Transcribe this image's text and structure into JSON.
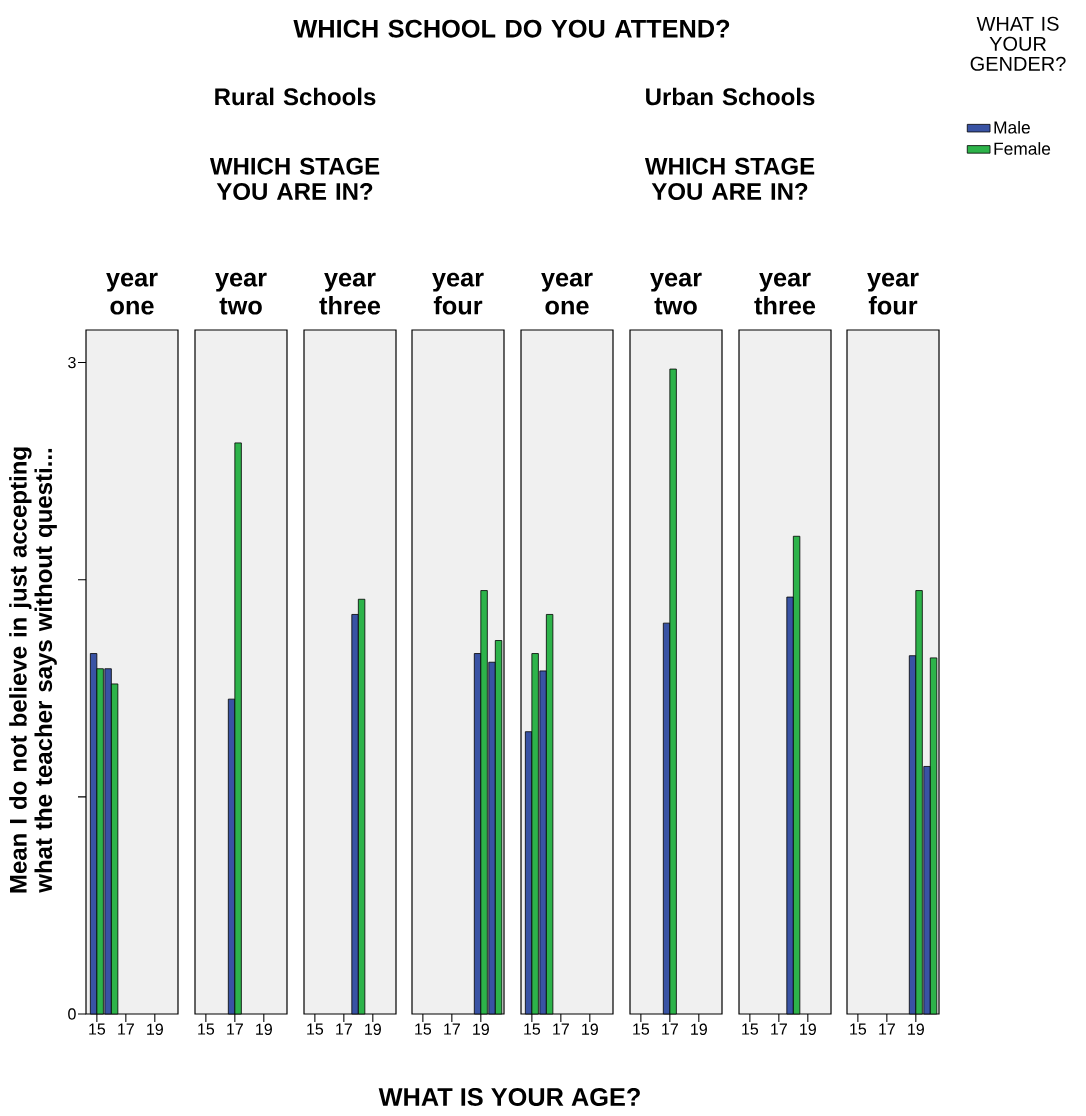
{
  "chart_data": [
    {
      "type": "bar",
      "title": "year one",
      "ylabel": "Mean I do not believe in just accepting what the teacher says without questi...",
      "annotations": [
        "WHICH SCHOOL DO YOU ATTEND?",
        "Rural Schools",
        "WHICH STAGE YOU ARE IN?"
      ],
      "xlim": [
        14.25,
        20.6
      ],
      "xticks": [
        15,
        17,
        19
      ],
      "ylim": [
        0,
        3.15
      ],
      "yticks": [
        0,
        {
          "value": 1,
          "label": null
        },
        {
          "value": 2,
          "label": null
        },
        3
      ],
      "series": [
        {
          "color": "#3953a4",
          "x": [
            15,
            16
          ],
          "values": [
            1.66,
            1.59
          ]
        },
        {
          "color": "#2db34a",
          "x": [
            15,
            16
          ],
          "values": [
            1.59,
            1.52
          ]
        }
      ]
    },
    {
      "type": "bar",
      "title": "year two",
      "xlim": [
        14.25,
        20.6
      ],
      "xticks": [
        15,
        17,
        19
      ],
      "ylim": [
        0,
        3.15
      ],
      "tick_labels": "x",
      "series": [
        {
          "color": "#3953a4",
          "x": [
            17
          ],
          "values": [
            1.45
          ]
        },
        {
          "color": "#2db34a",
          "x": [
            17
          ],
          "values": [
            2.63
          ]
        }
      ]
    },
    {
      "type": "bar",
      "title": "year three",
      "xlim": [
        14.25,
        20.6
      ],
      "xticks": [
        15,
        17,
        19
      ],
      "ylim": [
        0,
        3.15
      ],
      "tick_labels": "x",
      "series": [
        {
          "color": "#3953a4",
          "x": [
            18
          ],
          "values": [
            1.84
          ]
        },
        {
          "color": "#2db34a",
          "x": [
            18
          ],
          "values": [
            1.91
          ]
        }
      ]
    },
    {
      "type": "bar",
      "title": "year four",
      "xlabel": "WHAT IS YOUR AGE?",
      "xlim": [
        14.25,
        20.6
      ],
      "xticks": [
        15,
        17,
        19
      ],
      "ylim": [
        0,
        3.15
      ],
      "tick_labels": "x",
      "series": [
        {
          "color": "#3953a4",
          "x": [
            19,
            20
          ],
          "values": [
            1.66,
            1.62
          ]
        },
        {
          "color": "#2db34a",
          "x": [
            19,
            20
          ],
          "values": [
            1.95,
            1.72
          ]
        }
      ]
    },
    {
      "type": "bar",
      "title": "year one",
      "annotations": [
        "Urban Schools",
        "WHICH STAGE YOU ARE IN?"
      ],
      "xlim": [
        14.25,
        20.6
      ],
      "xticks": [
        15,
        17,
        19
      ],
      "ylim": [
        0,
        3.15
      ],
      "tick_labels": "x",
      "series": [
        {
          "color": "#3953a4",
          "x": [
            15,
            16
          ],
          "values": [
            1.3,
            1.58
          ]
        },
        {
          "color": "#2db34a",
          "x": [
            15,
            16
          ],
          "values": [
            1.66,
            1.84
          ]
        }
      ]
    },
    {
      "type": "bar",
      "title": "year two",
      "xlim": [
        14.25,
        20.6
      ],
      "xticks": [
        15,
        17,
        19
      ],
      "ylim": [
        0,
        3.15
      ],
      "tick_labels": "x",
      "series": [
        {
          "color": "#3953a4",
          "x": [
            17
          ],
          "values": [
            1.8
          ]
        },
        {
          "color": "#2db34a",
          "x": [
            17
          ],
          "values": [
            2.97
          ]
        }
      ]
    },
    {
      "type": "bar",
      "title": "year three",
      "xlim": [
        14.25,
        20.6
      ],
      "xticks": [
        15,
        17,
        19
      ],
      "ylim": [
        0,
        3.15
      ],
      "tick_labels": "x",
      "series": [
        {
          "color": "#3953a4",
          "x": [
            18
          ],
          "values": [
            1.92
          ]
        },
        {
          "color": "#2db34a",
          "x": [
            18
          ],
          "values": [
            2.2
          ]
        }
      ]
    },
    {
      "type": "bar",
      "title": "year four",
      "legend_title": "WHAT IS YOUR GENDER?",
      "legend": "right",
      "xlim": [
        14.25,
        20.6
      ],
      "xticks": [
        15,
        17,
        19
      ],
      "ylim": [
        0,
        3.15
      ],
      "tick_labels": "x",
      "series": [
        {
          "name": "Male",
          "color": "#3953a4",
          "x": [
            19,
            20
          ],
          "values": [
            1.65,
            1.14
          ]
        },
        {
          "name": "Female",
          "color": "#2db34a",
          "x": [
            19,
            20
          ],
          "values": [
            1.95,
            1.64
          ]
        }
      ]
    }
  ]
}
